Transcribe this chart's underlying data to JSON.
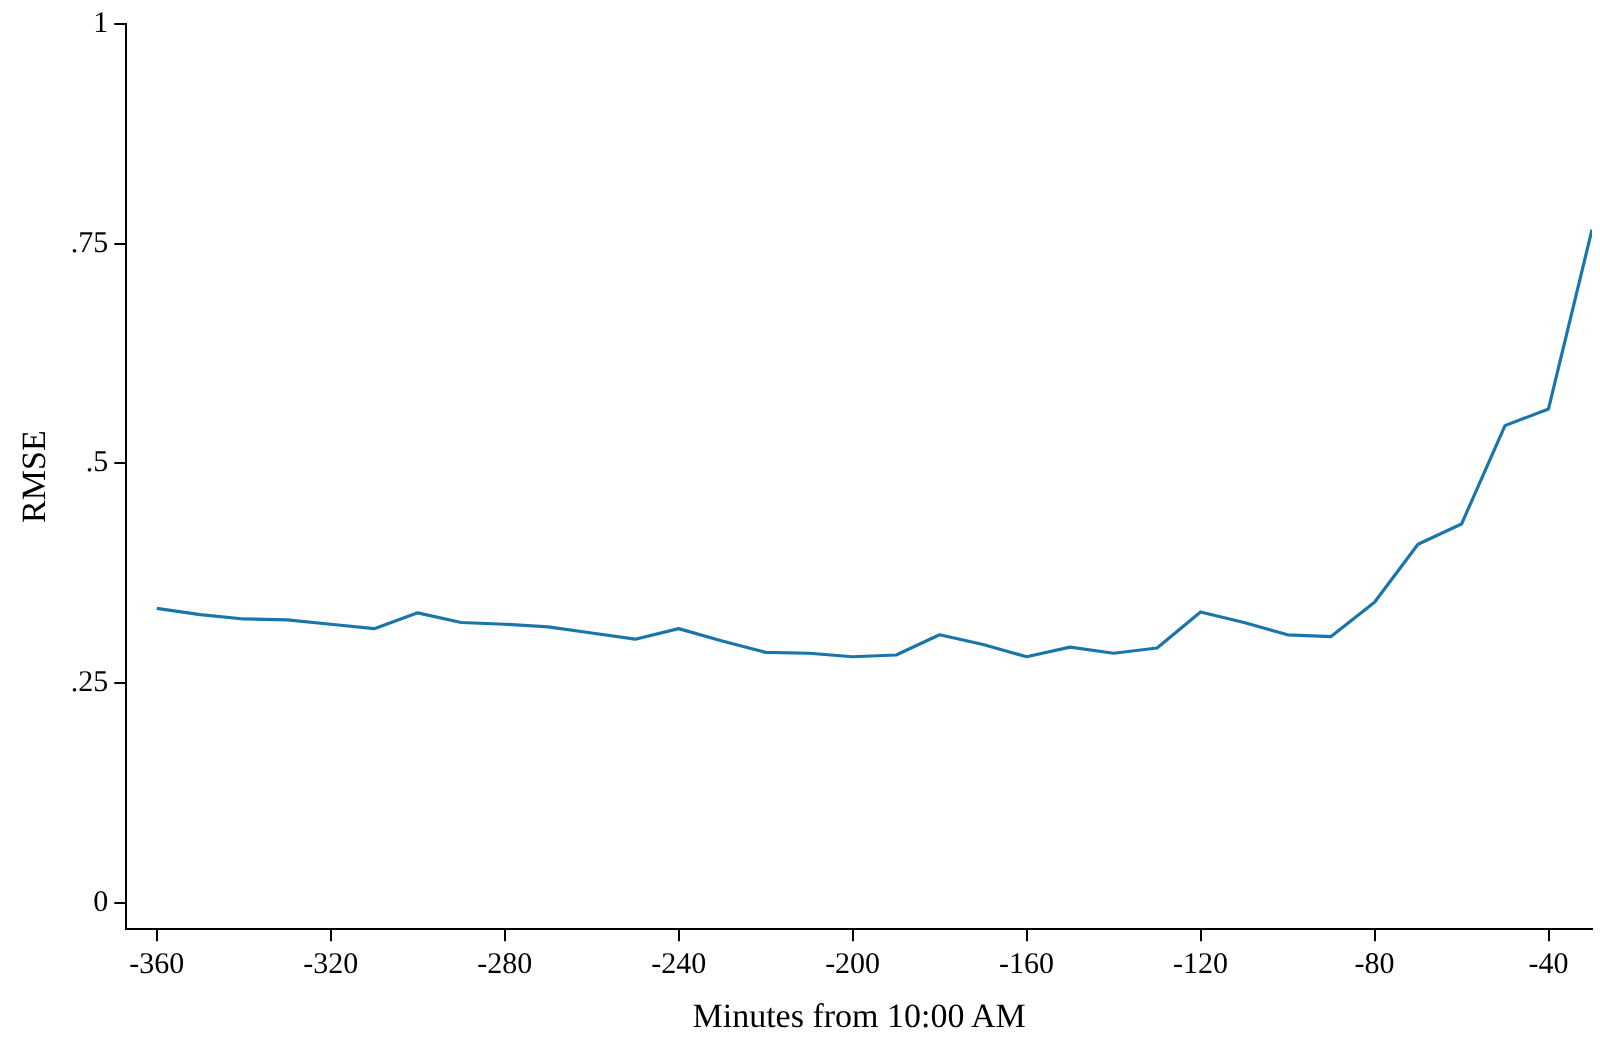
{
  "chart_data": {
    "type": "line",
    "xlabel": "Minutes from 10:00 AM",
    "ylabel": "RMSE",
    "x": [
      -360,
      -350,
      -340,
      -330,
      -320,
      -310,
      -300,
      -290,
      -280,
      -270,
      -260,
      -250,
      -240,
      -230,
      -220,
      -210,
      -200,
      -190,
      -180,
      -170,
      -160,
      -150,
      -140,
      -130,
      -120,
      -110,
      -100,
      -90,
      -80,
      -70,
      -60,
      -50,
      -40,
      -30
    ],
    "series": [
      {
        "color": "#1a76a8",
        "values": [
          0.335,
          0.328,
          0.323,
          0.322,
          0.317,
          0.312,
          0.33,
          0.319,
          0.317,
          0.314,
          0.307,
          0.3,
          0.312,
          0.298,
          0.285,
          0.284,
          0.28,
          0.282,
          0.305,
          0.294,
          0.28,
          0.291,
          0.284,
          0.29,
          0.331,
          0.319,
          0.305,
          0.303,
          0.342,
          0.408,
          0.431,
          0.543,
          0.562,
          0.766
        ]
      }
    ],
    "xlim": [
      -367,
      -30
    ],
    "xticks": [
      -360,
      -320,
      -280,
      -240,
      -200,
      -160,
      -120,
      -80,
      -40
    ],
    "ylim": [
      -0.03,
      1
    ],
    "yticks": [
      {
        "value": 0,
        "label": "0"
      },
      {
        "value": 0.25,
        "label": ".25"
      },
      {
        "value": 0.5,
        "label": ".5"
      },
      {
        "value": 0.75,
        "label": ".75"
      },
      {
        "value": 1,
        "label": "1"
      }
    ],
    "grid": false,
    "legend": false,
    "marker": "none",
    "line_style": "solid"
  }
}
